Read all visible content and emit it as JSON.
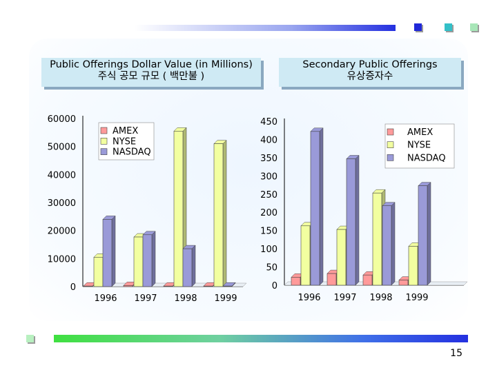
{
  "decor_colors": {
    "square_blue": "#2028d8",
    "square_teal": "#33c0c8",
    "square_green": "#a8e6b8",
    "square_small": "#b8f0c0"
  },
  "page_number": "15",
  "chart_data": [
    {
      "type": "bar",
      "title": "Public Offerings Dollar Value (in Millions)",
      "subtitle": "주식 공모 규모 ( 백만불 )",
      "categories": [
        "1996",
        "1997",
        "1998",
        "1999"
      ],
      "ylim": [
        0,
        60000
      ],
      "yticks": [
        "0",
        "10000",
        "20000",
        "30000",
        "40000",
        "50000",
        "60000"
      ],
      "legend_position": "top-left",
      "grid": false,
      "series": [
        {
          "name": "AMEX",
          "color": "#ff9a9a",
          "values": [
            200,
            400,
            200,
            200
          ]
        },
        {
          "name": "NYSE",
          "color": "#f2ffa0",
          "values": [
            10500,
            17700,
            55500,
            51000
          ]
        },
        {
          "name": "NASDAQ",
          "color": "#9a9ad8",
          "values": [
            24000,
            18500,
            13500,
            200
          ]
        }
      ]
    },
    {
      "type": "bar",
      "title": "Secondary Public Offerings",
      "subtitle": "유상증자수",
      "categories": [
        "1996",
        "1997",
        "1998",
        "1999"
      ],
      "ylim": [
        0,
        450
      ],
      "yticks": [
        "0",
        "50",
        "100",
        "150",
        "200",
        "250",
        "300",
        "350",
        "400",
        "450"
      ],
      "legend_position": "top-right",
      "grid": false,
      "series": [
        {
          "name": "AMEX",
          "color": "#ff9a9a",
          "values": [
            22,
            32,
            28,
            14
          ]
        },
        {
          "name": "NYSE",
          "color": "#f2ffa0",
          "values": [
            163,
            153,
            253,
            107
          ]
        },
        {
          "name": "NASDAQ",
          "color": "#9a9ad8",
          "values": [
            422,
            347,
            218,
            273
          ]
        }
      ]
    }
  ]
}
